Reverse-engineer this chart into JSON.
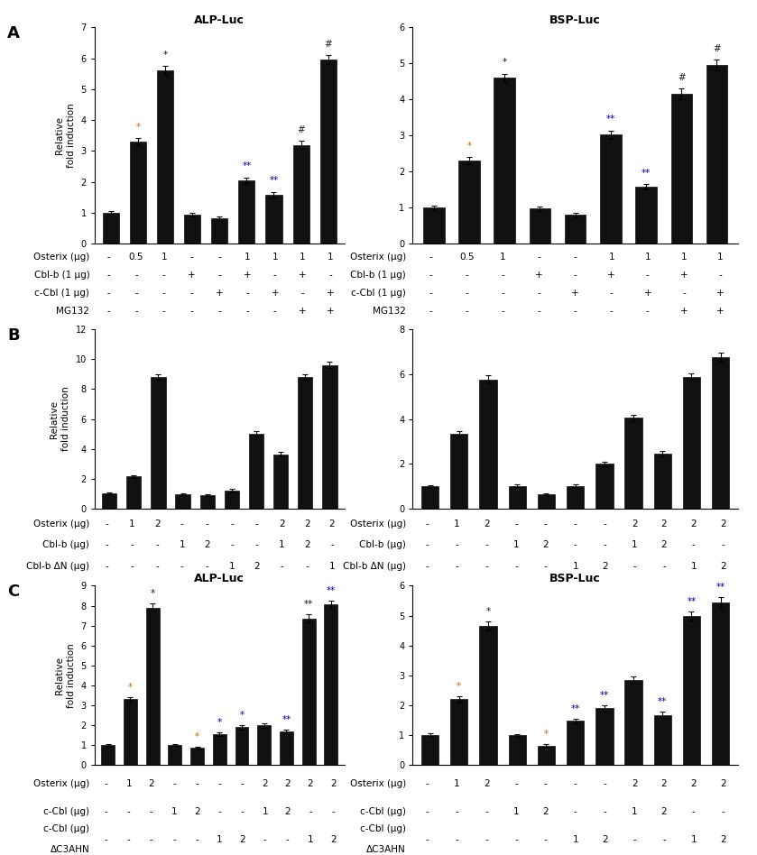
{
  "panel_A_left": {
    "title": "ALP-Luc",
    "values": [
      1.0,
      3.3,
      5.6,
      0.95,
      0.82,
      2.05,
      1.58,
      3.2,
      5.95
    ],
    "errors": [
      0.06,
      0.12,
      0.15,
      0.06,
      0.06,
      0.1,
      0.1,
      0.12,
      0.15
    ],
    "ylim": [
      0,
      7
    ],
    "yticks": [
      0,
      1,
      2,
      3,
      4,
      5,
      6,
      7
    ],
    "row1": [
      "-",
      "0.5",
      "1",
      "-",
      "-",
      "1",
      "1",
      "1",
      "1"
    ],
    "row2": [
      "-",
      "-",
      "-",
      "+",
      "-",
      "+",
      "-",
      "+",
      "-"
    ],
    "row3": [
      "-",
      "-",
      "-",
      "-",
      "+",
      "-",
      "+",
      "-",
      "+"
    ],
    "row4": [
      "-",
      "-",
      "-",
      "-",
      "-",
      "-",
      "-",
      "+",
      "+"
    ],
    "row1_label": "Osterix (μg)",
    "row2_label": "Cbl-b (1 μg)",
    "row3_label": "c-Cbl (1 μg)",
    "row4_label": "MG132",
    "n_table_rows": 4,
    "stars": [
      "",
      "*",
      "*",
      "",
      "",
      "**",
      "**",
      "#",
      "#"
    ],
    "star_colors": [
      "",
      "#cc6600",
      "#1a1a1a",
      "",
      "",
      "#0000cc",
      "#0000cc",
      "#1a1a1a",
      "#1a1a1a"
    ]
  },
  "panel_A_right": {
    "title": "BSP-Luc",
    "values": [
      1.0,
      2.3,
      4.6,
      0.97,
      0.8,
      3.02,
      1.58,
      4.15,
      4.95
    ],
    "errors": [
      0.06,
      0.1,
      0.12,
      0.06,
      0.06,
      0.12,
      0.08,
      0.15,
      0.15
    ],
    "ylim": [
      0,
      6
    ],
    "yticks": [
      0,
      1,
      2,
      3,
      4,
      5,
      6
    ],
    "row1": [
      "-",
      "0.5",
      "1",
      "-",
      "-",
      "1",
      "1",
      "1",
      "1"
    ],
    "row2": [
      "-",
      "-",
      "-",
      "+",
      "-",
      "+",
      "-",
      "+",
      "-"
    ],
    "row3": [
      "-",
      "-",
      "-",
      "-",
      "+",
      "-",
      "+",
      "-",
      "+"
    ],
    "row4": [
      "-",
      "-",
      "-",
      "-",
      "-",
      "-",
      "-",
      "+",
      "+"
    ],
    "row1_label": "Osterix (μg)",
    "row2_label": "Cbl-b (1 μg)",
    "row3_label": "c-Cbl (1 μg)",
    "row4_label": "MG132",
    "n_table_rows": 4,
    "stars": [
      "",
      "*",
      "*",
      "",
      "",
      "**",
      "**",
      "#",
      "#"
    ],
    "star_colors": [
      "",
      "#cc6600",
      "#1a1a1a",
      "",
      "",
      "#0000cc",
      "#0000cc",
      "#1a1a1a",
      "#1a1a1a"
    ]
  },
  "panel_B_left": {
    "title": "",
    "values": [
      1.0,
      2.15,
      8.8,
      0.95,
      0.88,
      1.2,
      5.0,
      3.65,
      8.8,
      9.6
    ],
    "errors": [
      0.06,
      0.1,
      0.2,
      0.06,
      0.06,
      0.1,
      0.18,
      0.15,
      0.18,
      0.2
    ],
    "ylim": [
      0,
      12
    ],
    "yticks": [
      0,
      2,
      4,
      6,
      8,
      10,
      12
    ],
    "row1": [
      "-",
      "1",
      "2",
      "-",
      "-",
      "-",
      "-",
      "2",
      "2",
      "2"
    ],
    "row2": [
      "-",
      "-",
      "-",
      "1",
      "2",
      "-",
      "-",
      "1",
      "2",
      "-"
    ],
    "row3": [
      "-",
      "-",
      "-",
      "-",
      "-",
      "1",
      "2",
      "-",
      "-",
      "1"
    ],
    "row1_label": "Osterix (μg)",
    "row2_label": "Cbl-b (μg)",
    "row3_label": "Cbl-b ΔN (μg)",
    "n_table_rows": 3,
    "stars": [],
    "star_colors": []
  },
  "panel_B_right": {
    "title": "",
    "values": [
      1.0,
      3.35,
      5.75,
      1.02,
      0.65,
      1.0,
      2.0,
      4.05,
      2.45,
      5.85,
      6.75
    ],
    "errors": [
      0.06,
      0.12,
      0.18,
      0.06,
      0.05,
      0.08,
      0.1,
      0.15,
      0.12,
      0.18,
      0.2
    ],
    "ylim": [
      0,
      8
    ],
    "yticks": [
      0,
      2,
      4,
      6,
      8
    ],
    "row1": [
      "-",
      "1",
      "2",
      "-",
      "-",
      "-",
      "-",
      "2",
      "2",
      "2",
      "2"
    ],
    "row2": [
      "-",
      "-",
      "-",
      "1",
      "2",
      "-",
      "-",
      "1",
      "2",
      "-",
      "-"
    ],
    "row3": [
      "-",
      "-",
      "-",
      "-",
      "-",
      "1",
      "2",
      "-",
      "-",
      "1",
      "2"
    ],
    "row1_label": "Osterix (μg)",
    "row2_label": "Cbl-b (μg)",
    "row3_label": "Cbl-b ΔN (μg)",
    "n_table_rows": 3,
    "stars": [],
    "star_colors": []
  },
  "panel_C_left": {
    "title": "ALP-Luc",
    "values": [
      1.0,
      3.3,
      7.9,
      1.0,
      0.88,
      1.55,
      1.9,
      2.0,
      1.68,
      7.35,
      8.05
    ],
    "errors": [
      0.06,
      0.12,
      0.2,
      0.05,
      0.06,
      0.1,
      0.1,
      0.12,
      0.1,
      0.2,
      0.22
    ],
    "ylim": [
      0,
      9
    ],
    "yticks": [
      0,
      1,
      2,
      3,
      4,
      5,
      6,
      7,
      8,
      9
    ],
    "row1": [
      "-",
      "1",
      "2",
      "-",
      "-",
      "-",
      "-",
      "2",
      "2",
      "2",
      "2"
    ],
    "row2": [
      "-",
      "-",
      "-",
      "1",
      "2",
      "-",
      "-",
      "1",
      "2",
      "-",
      "-"
    ],
    "row3": [
      "-",
      "-",
      "-",
      "-",
      "-",
      "1",
      "2",
      "-",
      "-",
      "1",
      "2"
    ],
    "row1_label": "Osterix (μg)",
    "row2_label": "c-Cbl (μg)",
    "row3_label": "c-Cbl (μg)\nΔC3AHN",
    "n_table_rows": 3,
    "stars": [
      "",
      "*",
      "*",
      "",
      "*",
      "*",
      "*",
      "",
      "**",
      "**",
      "**"
    ],
    "star_colors": [
      "",
      "#cc6600",
      "#1a1a1a",
      "",
      "#cc6600",
      "#0000cc",
      "#0000cc",
      "",
      "#0000cc",
      "#1a1a1a",
      "#0000cc"
    ]
  },
  "panel_C_right": {
    "title": "BSP-Luc",
    "values": [
      1.0,
      2.2,
      4.65,
      1.0,
      0.65,
      1.48,
      1.9,
      2.85,
      1.68,
      5.0,
      5.45
    ],
    "errors": [
      0.06,
      0.1,
      0.15,
      0.05,
      0.05,
      0.08,
      0.1,
      0.12,
      0.1,
      0.15,
      0.18
    ],
    "ylim": [
      0,
      6
    ],
    "yticks": [
      0,
      1,
      2,
      3,
      4,
      5,
      6
    ],
    "row1": [
      "-",
      "1",
      "2",
      "-",
      "-",
      "-",
      "-",
      "2",
      "2",
      "2",
      "2"
    ],
    "row2": [
      "-",
      "-",
      "-",
      "1",
      "2",
      "-",
      "-",
      "1",
      "2",
      "-",
      "-"
    ],
    "row3": [
      "-",
      "-",
      "-",
      "-",
      "-",
      "1",
      "2",
      "-",
      "-",
      "1",
      "2"
    ],
    "row1_label": "Osterix (μg)",
    "row2_label": "c-Cbl (μg)",
    "row3_label": "c-Cbl (μg)\nΔC3AHN",
    "n_table_rows": 3,
    "stars": [
      "",
      "*",
      "*",
      "",
      "*",
      "**",
      "**",
      "",
      "**",
      "**",
      "**"
    ],
    "star_colors": [
      "",
      "#cc6600",
      "#1a1a1a",
      "",
      "#cc6600",
      "#0000cc",
      "#0000cc",
      "",
      "#0000cc",
      "#0000cc",
      "#0000cc"
    ]
  },
  "bar_color": "#111111",
  "bar_width": 0.6,
  "ylabel": "Relative\nfold induction",
  "tick_fontsize": 7,
  "title_fontsize": 9,
  "star_fontsize": 7.5,
  "panel_label_fontsize": 13,
  "table_fontsize": 7.5,
  "label_fontsize": 7.5
}
